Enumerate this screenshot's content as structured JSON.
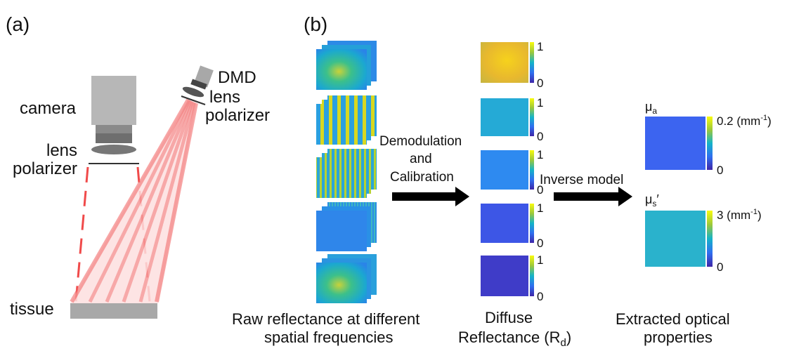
{
  "panel_a": {
    "label": "(a)",
    "camera": "camera",
    "lens_left": "lens",
    "polarizer_left": "polarizer",
    "dmd": "DMD",
    "lens_right": "lens",
    "polarizer_right": "polarizer",
    "tissue": "tissue"
  },
  "panel_b": {
    "label": "(b)",
    "raw_caption_1": "Raw reflectance at different",
    "raw_caption_2": "spatial frequencies",
    "demod_1": "Demodulation",
    "demod_2": "and",
    "demod_3": "Calibration",
    "diffuse_caption_1": "Diffuse",
    "diffuse_caption_2": "Reflectance (R",
    "diffuse_caption_sub": "d",
    "diffuse_caption_end": ")",
    "inverse": "Inverse model",
    "extracted_1": "Extracted optical",
    "extracted_2": "properties",
    "rd_colorbar_max": "1",
    "rd_colorbar_min": "0",
    "mua_symbol": "μ",
    "mua_sub": "a",
    "mua_max": "0.2 (mm",
    "mua_max_sup": "-1",
    "mua_max_end": ")",
    "mua_min": "0",
    "mus_symbol": "μ",
    "mus_sub": "s",
    "mus_prime": "′",
    "mus_max": "3 (mm",
    "mus_max_sup": "-1",
    "mus_max_end": ")",
    "mus_min": "0"
  },
  "colors": {
    "beam": "#f04a4a",
    "arrow": "#000000",
    "colormap_low": "#3e26a8",
    "colormap_high": "#f9fb0e"
  }
}
